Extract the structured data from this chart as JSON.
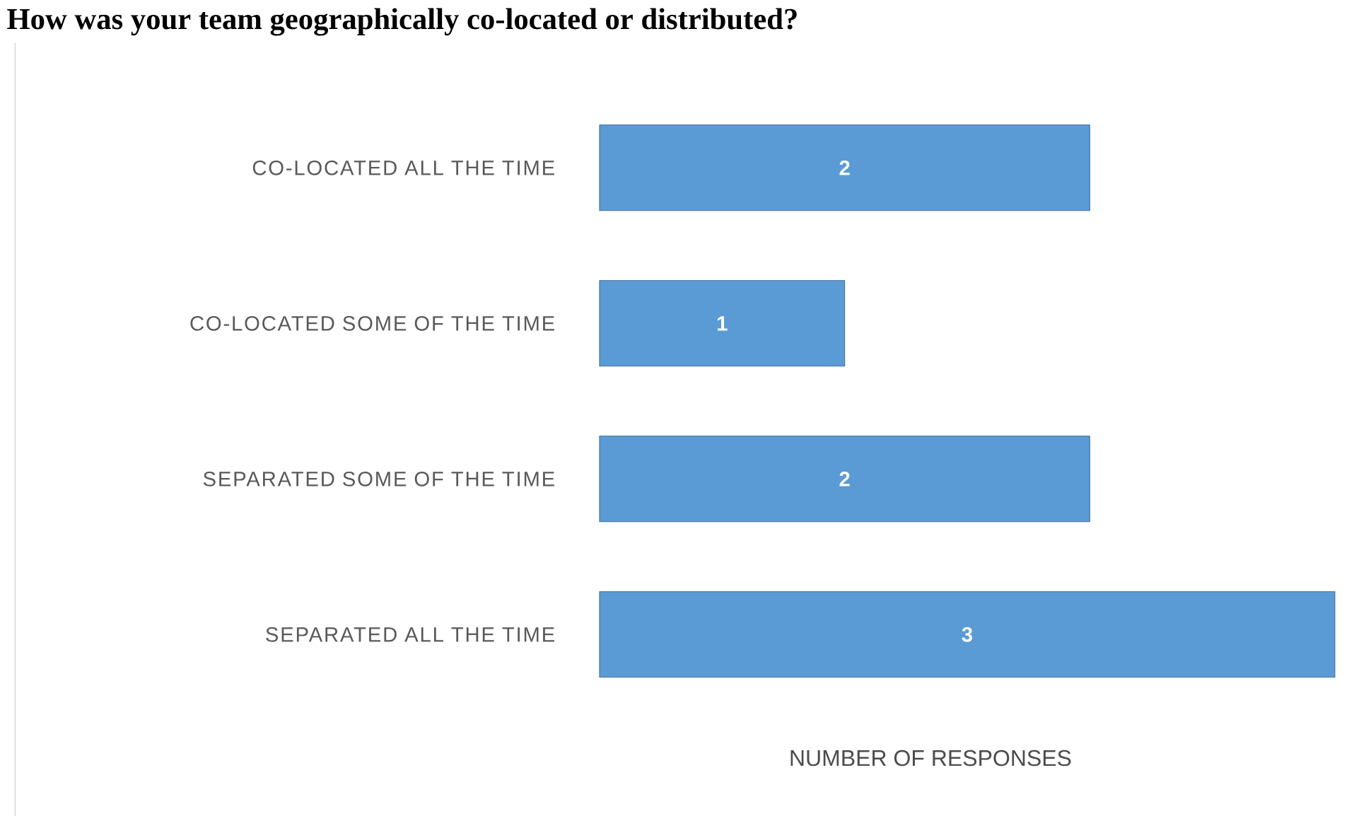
{
  "chart_data": {
    "type": "bar",
    "orientation": "horizontal",
    "title": "How was your team geographically co-located or distributed?",
    "xlabel": "NUMBER OF RESPONSES",
    "categories": [
      "CO-LOCATED ALL THE TIME",
      "CO-LOCATED SOME OF THE TIME",
      "SEPARATED SOME OF THE TIME",
      "SEPARATED ALL THE TIME"
    ],
    "values": [
      2,
      1,
      2,
      3
    ],
    "color": "#5b9bd5",
    "data_labels": true,
    "tick_labels": "y"
  }
}
